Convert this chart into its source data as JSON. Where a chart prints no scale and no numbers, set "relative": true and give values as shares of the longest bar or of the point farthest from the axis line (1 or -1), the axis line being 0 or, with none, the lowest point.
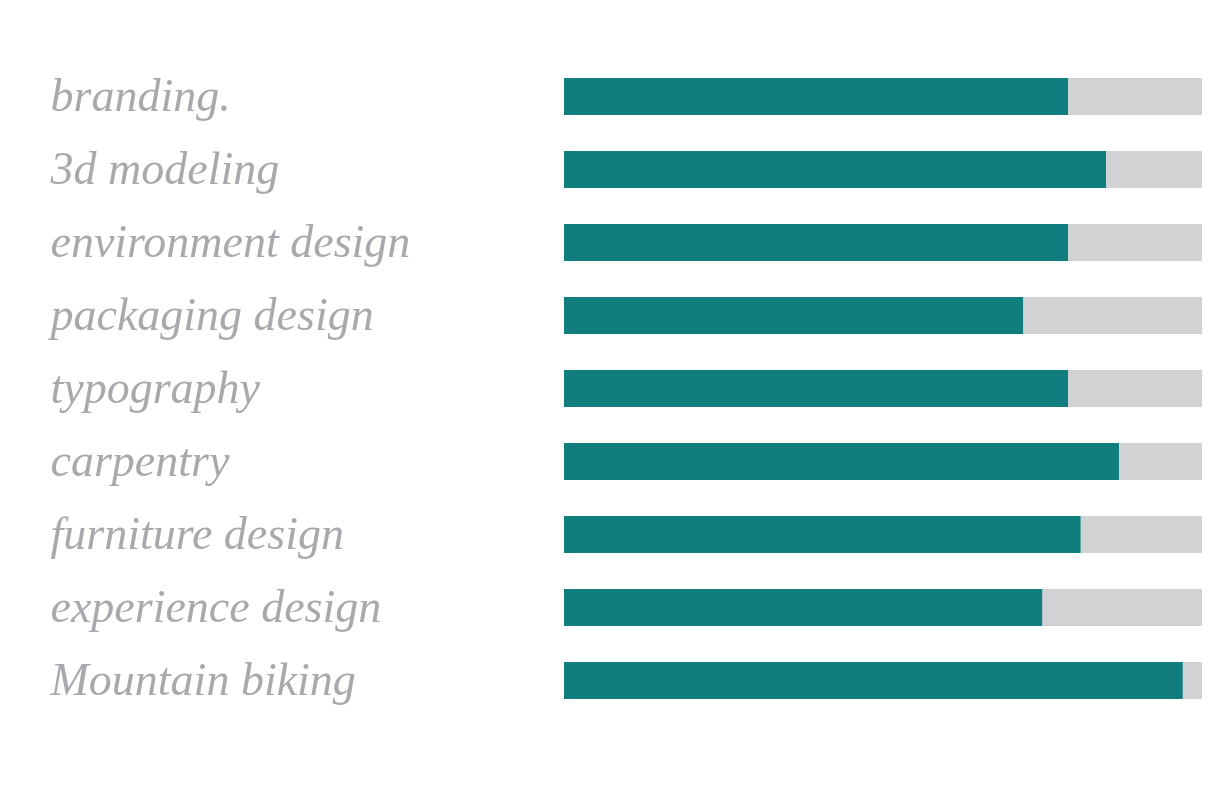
{
  "chart_data": {
    "type": "bar",
    "orientation": "horizontal",
    "stacked": true,
    "relative": true,
    "legend": false,
    "categories": [
      "branding.",
      "3d modeling",
      "environment design",
      "packaging design",
      "typography",
      "carpentry",
      "furniture design",
      "experience design",
      "Mountain biking"
    ],
    "series": [
      {
        "color": "#107e7f",
        "values": [
          0.79,
          0.85,
          0.79,
          0.72,
          0.79,
          0.87,
          0.81,
          0.75,
          0.97
        ]
      },
      {
        "color": "#d1d2d3",
        "values": [
          0.21,
          0.15,
          0.21,
          0.28,
          0.21,
          0.13,
          0.19,
          0.25,
          0.03
        ]
      }
    ]
  }
}
